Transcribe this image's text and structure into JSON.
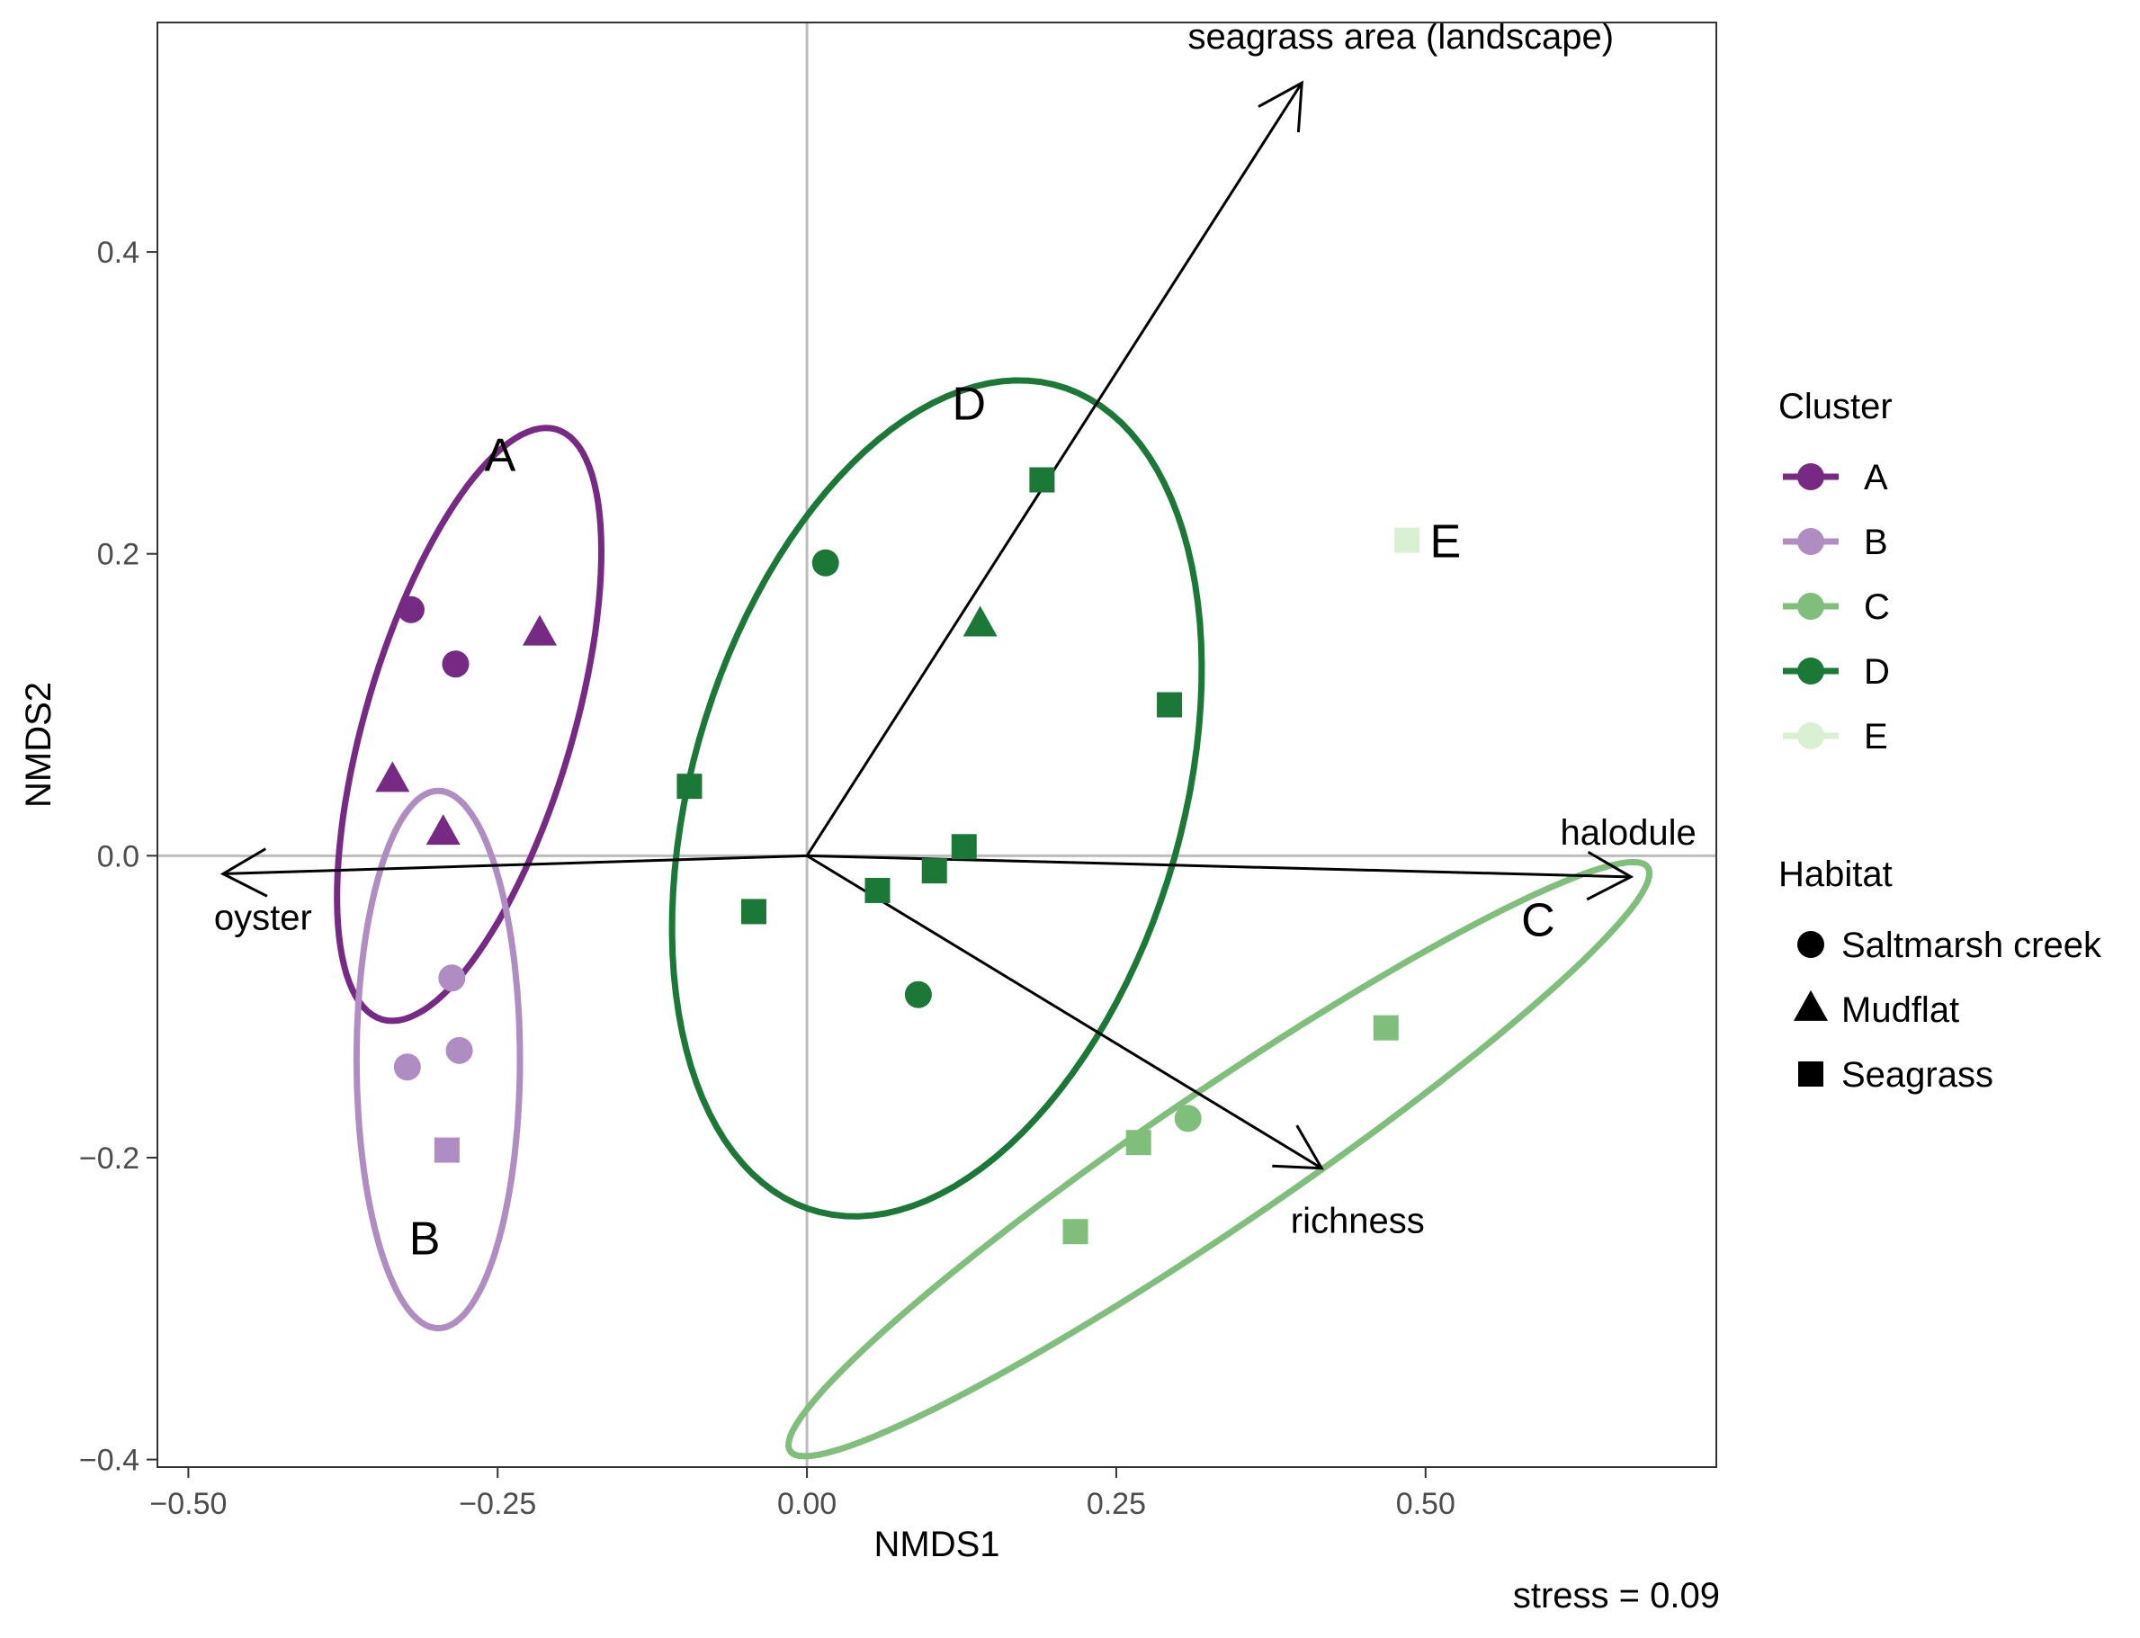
{
  "chart_data": {
    "type": "scatter",
    "title": "",
    "xlabel": "NMDS1",
    "ylabel": "NMDS2",
    "xlim": [
      -0.525,
      0.735
    ],
    "ylim": [
      -0.405,
      0.552
    ],
    "x_ticks": [
      -0.5,
      -0.25,
      0.0,
      0.25,
      0.5
    ],
    "x_tick_labels": [
      "−0.50",
      "−0.25",
      "0.00",
      "0.25",
      "0.50"
    ],
    "y_ticks": [
      -0.4,
      -0.2,
      0.0,
      0.2,
      0.4
    ],
    "y_tick_labels": [
      "−0.4",
      "−0.2",
      "0.0",
      "0.2",
      "0.4"
    ],
    "grid": false,
    "zero_lines": true,
    "stress_label": "stress = 0.09",
    "clusters": [
      {
        "name": "A",
        "color": "#762a83"
      },
      {
        "name": "B",
        "color": "#af8dc3"
      },
      {
        "name": "C",
        "color": "#7fbf7b"
      },
      {
        "name": "D",
        "color": "#1b7837"
      },
      {
        "name": "E",
        "color": "#d9f0d3"
      }
    ],
    "habitats": [
      {
        "name": "Saltmarsh creek",
        "shape": "circle"
      },
      {
        "name": "Mudflat",
        "shape": "triangle"
      },
      {
        "name": "Seagrass",
        "shape": "square"
      }
    ],
    "legend": {
      "placement": "right",
      "cluster_title": "Cluster",
      "habitat_title": "Habitat"
    },
    "points": [
      {
        "x": -0.32,
        "y": 0.163,
        "cluster": "A",
        "habitat": "Saltmarsh creek"
      },
      {
        "x": -0.284,
        "y": 0.127,
        "cluster": "A",
        "habitat": "Saltmarsh creek"
      },
      {
        "x": -0.216,
        "y": 0.147,
        "cluster": "A",
        "habitat": "Mudflat"
      },
      {
        "x": -0.335,
        "y": 0.05,
        "cluster": "A",
        "habitat": "Mudflat"
      },
      {
        "x": -0.294,
        "y": 0.015,
        "cluster": "A",
        "habitat": "Mudflat"
      },
      {
        "x": -0.287,
        "y": -0.081,
        "cluster": "B",
        "habitat": "Saltmarsh creek"
      },
      {
        "x": -0.323,
        "y": -0.14,
        "cluster": "B",
        "habitat": "Saltmarsh creek"
      },
      {
        "x": -0.281,
        "y": -0.129,
        "cluster": "B",
        "habitat": "Saltmarsh creek"
      },
      {
        "x": -0.291,
        "y": -0.195,
        "cluster": "B",
        "habitat": "Seagrass"
      },
      {
        "x": 0.468,
        "y": -0.114,
        "cluster": "C",
        "habitat": "Seagrass"
      },
      {
        "x": 0.308,
        "y": -0.174,
        "cluster": "C",
        "habitat": "Saltmarsh creek"
      },
      {
        "x": 0.268,
        "y": -0.19,
        "cluster": "C",
        "habitat": "Seagrass"
      },
      {
        "x": 0.217,
        "y": -0.249,
        "cluster": "C",
        "habitat": "Seagrass"
      },
      {
        "x": 0.015,
        "y": 0.194,
        "cluster": "D",
        "habitat": "Saltmarsh creek"
      },
      {
        "x": 0.19,
        "y": 0.249,
        "cluster": "D",
        "habitat": "Seagrass"
      },
      {
        "x": 0.14,
        "y": 0.153,
        "cluster": "D",
        "habitat": "Mudflat"
      },
      {
        "x": 0.293,
        "y": 0.1,
        "cluster": "D",
        "habitat": "Seagrass"
      },
      {
        "x": -0.095,
        "y": 0.046,
        "cluster": "D",
        "habitat": "Seagrass"
      },
      {
        "x": 0.127,
        "y": 0.006,
        "cluster": "D",
        "habitat": "Seagrass"
      },
      {
        "x": 0.103,
        "y": -0.01,
        "cluster": "D",
        "habitat": "Seagrass"
      },
      {
        "x": 0.057,
        "y": -0.023,
        "cluster": "D",
        "habitat": "Seagrass"
      },
      {
        "x": -0.043,
        "y": -0.037,
        "cluster": "D",
        "habitat": "Seagrass"
      },
      {
        "x": 0.09,
        "y": -0.092,
        "cluster": "D",
        "habitat": "Saltmarsh creek"
      },
      {
        "x": 0.485,
        "y": 0.209,
        "cluster": "E",
        "habitat": "Seagrass"
      }
    ],
    "ellipses": [
      {
        "cluster": "A",
        "cx": -0.273,
        "cy": 0.087,
        "rx": 0.208,
        "ry": 0.082,
        "angle": 69
      },
      {
        "cluster": "B",
        "cx": -0.298,
        "cy": -0.135,
        "rx": 0.178,
        "ry": 0.066,
        "angle": 90
      },
      {
        "cluster": "C",
        "cx": 0.333,
        "cy": -0.201,
        "rx": 0.397,
        "ry": 0.047,
        "angle": 29
      },
      {
        "cluster": "D",
        "cx": 0.105,
        "cy": 0.038,
        "rx": 0.292,
        "ry": 0.193,
        "angle": 65
      }
    ],
    "cluster_labels": [
      {
        "text": "A",
        "x": -0.248,
        "y": 0.265
      },
      {
        "text": "B",
        "x": -0.309,
        "y": -0.254
      },
      {
        "text": "C",
        "x": 0.591,
        "y": -0.043
      },
      {
        "text": "D",
        "x": 0.131,
        "y": 0.299
      },
      {
        "text": "E",
        "x": 0.516,
        "y": 0.208
      }
    ],
    "vectors": [
      {
        "label": "seagrass area (landscape)",
        "x": 0.4,
        "y": 0.512
      },
      {
        "label": "halodule",
        "x": 0.666,
        "y": -0.014
      },
      {
        "label": "oyster",
        "x": -0.472,
        "y": -0.012
      },
      {
        "label": "richness",
        "x": 0.416,
        "y": -0.207
      }
    ]
  }
}
